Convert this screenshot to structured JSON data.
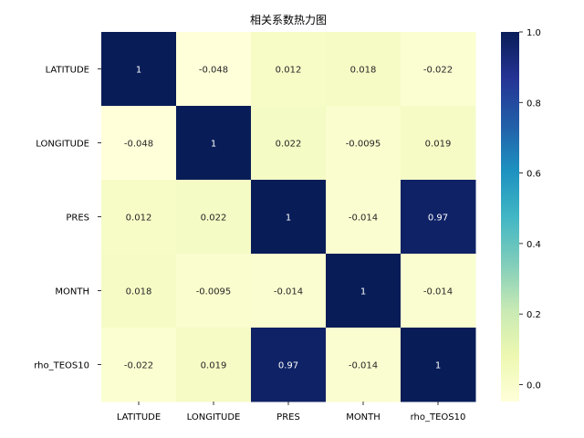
{
  "chart_data": {
    "type": "heatmap",
    "title": "相关系数热力图",
    "x_categories": [
      "LATITUDE",
      "LONGITUDE",
      "PRES",
      "MONTH",
      "rho_TEOS10"
    ],
    "y_categories": [
      "LATITUDE",
      "LONGITUDE",
      "PRES",
      "MONTH",
      "rho_TEOS10"
    ],
    "values": [
      [
        1,
        -0.048,
        0.012,
        0.018,
        -0.022
      ],
      [
        -0.048,
        1,
        0.022,
        -0.0095,
        0.019
      ],
      [
        0.012,
        0.022,
        1,
        -0.014,
        0.97
      ],
      [
        0.018,
        -0.0095,
        -0.014,
        1,
        -0.014
      ],
      [
        -0.022,
        0.019,
        0.97,
        -0.014,
        1
      ]
    ],
    "annotations": [
      [
        "1",
        "-0.048",
        "0.012",
        "0.018",
        "-0.022"
      ],
      [
        "-0.048",
        "1",
        "0.022",
        "-0.0095",
        "0.019"
      ],
      [
        "0.012",
        "0.022",
        "1",
        "-0.014",
        "0.97"
      ],
      [
        "0.018",
        "-0.0095",
        "-0.014",
        "1",
        "-0.014"
      ],
      [
        "-0.022",
        "0.019",
        "0.97",
        "-0.014",
        "1"
      ]
    ],
    "colormap": "YlGnBu",
    "colorbar": {
      "vmin": -0.048,
      "vmax": 1.0,
      "ticks": [
        0.0,
        0.2,
        0.4,
        0.6,
        0.8,
        1.0
      ],
      "tick_labels": [
        "0.0",
        "0.2",
        "0.4",
        "0.6",
        "0.8",
        "1.0"
      ]
    }
  }
}
